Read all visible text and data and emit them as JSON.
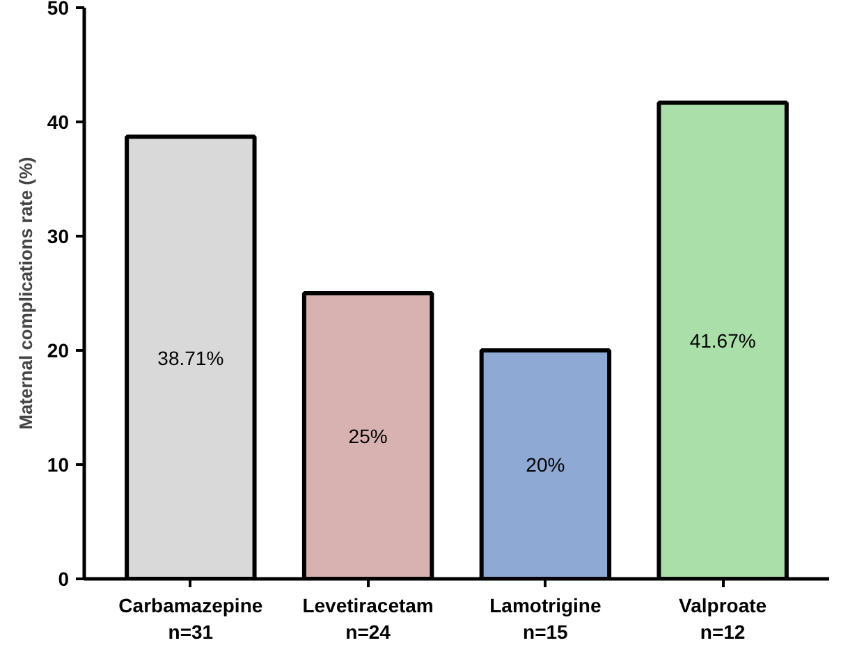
{
  "chart_data": {
    "type": "bar",
    "ylabel": "Maternal complications rate (%)",
    "categories": [
      "Carbamazepine\nn=31",
      "Levetiracetam\nn=24",
      "Lamotrigine\nn=15",
      "Valproate\nn=12"
    ],
    "values": [
      38.71,
      25,
      20,
      41.67
    ],
    "colors": [
      "#d9d9d9",
      "#d8b1b1",
      "#8eaad4",
      "#aadfaa"
    ],
    "value_labels": [
      "38.71%",
      "25%",
      "20%",
      "41.67%"
    ],
    "ylim": [
      0,
      50
    ],
    "yticks": [
      0,
      10,
      20,
      30,
      40,
      50
    ],
    "grid": false
  }
}
